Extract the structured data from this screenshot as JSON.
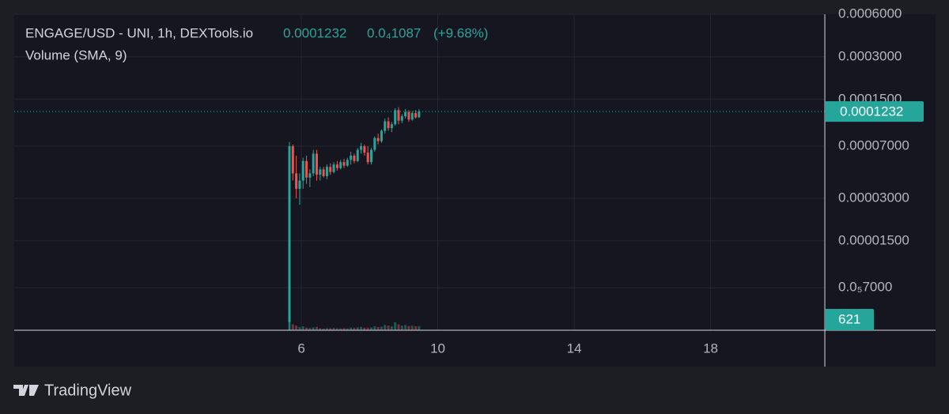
{
  "chart_data": {
    "type": "candlestick",
    "title": "ENGAGE/USD - UNI, 1h, DEXTools.io",
    "last_price": 0.0001232,
    "change": {
      "value": 1.087e-05,
      "label": "0.0₄1087"
    },
    "change_percent": {
      "value": 9.68,
      "label": "(+9.68%)"
    },
    "volume_title": "Volume (SMA, 9)",
    "brand": "TradingView",
    "log_scale": true,
    "grid": true,
    "up_color": "#26a69a",
    "down_color": "#ef5350",
    "xlim": [
      -2.42,
      21.35
    ],
    "xticks": [
      6,
      10,
      14,
      18
    ],
    "ylim": [
      3.5e-06,
      0.0006
    ],
    "yticks": [
      {
        "value": 0.0006,
        "label": "0.0006000"
      },
      {
        "value": 0.0003,
        "label": "0.0003000"
      },
      {
        "value": 0.00015,
        "label": "0.0001500"
      },
      {
        "value": 7e-05,
        "label": "0.00007000"
      },
      {
        "value": 3e-05,
        "label": "0.00003000"
      },
      {
        "value": 1.5e-05,
        "label": "0.00001500"
      },
      {
        "value": 7e-06,
        "label": "0.0₅7000"
      }
    ],
    "volume_ylim": [
      0,
      30000
    ],
    "x": [
      5.65,
      5.75,
      5.85,
      5.95,
      6.05,
      6.15,
      6.25,
      6.35,
      6.45,
      6.55,
      6.65,
      6.75,
      6.85,
      6.95,
      7.05,
      7.15,
      7.25,
      7.35,
      7.45,
      7.55,
      7.65,
      7.75,
      7.85,
      7.95,
      8.05,
      8.15,
      8.25,
      8.35,
      8.45,
      8.55,
      8.65,
      8.75,
      8.85,
      8.95,
      9.05,
      9.15,
      9.25,
      9.35,
      9.45
    ],
    "open": [
      4e-06,
      7e-05,
      4.5e-05,
      3.5e-05,
      4e-05,
      5.5e-05,
      4.2e-05,
      4.5e-05,
      6.2e-05,
      4.4e-05,
      4.8e-05,
      4.3e-05,
      5e-05,
      4.6e-05,
      5.2e-05,
      4.9e-05,
      5.4e-05,
      5.1e-05,
      5.6e-05,
      6e-05,
      5.5e-05,
      6.6e-05,
      7e-05,
      6.3e-05,
      5.4e-05,
      6.6e-05,
      8e-05,
      7.6e-05,
      9e-05,
      0.000105,
      9.4e-05,
      0.0001,
      0.000126,
      0.000106,
      0.000114,
      0.000122,
      0.000108,
      0.00012,
      0.000112
    ],
    "high": [
      7.5e-05,
      7.2e-05,
      6e-05,
      4.5e-05,
      5.8e-05,
      6e-05,
      4.8e-05,
      6.6e-05,
      6.6e-05,
      5e-05,
      5e-05,
      5.2e-05,
      5.3e-05,
      5.4e-05,
      5.5e-05,
      5.6e-05,
      5.7e-05,
      5.8e-05,
      6.4e-05,
      6.2e-05,
      6.8e-05,
      7.4e-05,
      7.2e-05,
      7e-05,
      6.8e-05,
      8.2e-05,
      8.6e-05,
      9.2e-05,
      0.00011,
      0.000112,
      0.000104,
      0.00013,
      0.000132,
      0.000118,
      0.000128,
      0.000126,
      0.000124,
      0.000126,
      0.000128
    ],
    "low": [
      3.5e-06,
      4e-05,
      3e-05,
      2.7e-05,
      3.5e-05,
      3.8e-05,
      3.6e-05,
      4.3e-05,
      4e-05,
      4e-05,
      4.2e-05,
      4.1e-05,
      4.4e-05,
      4.5e-05,
      4.7e-05,
      4.8e-05,
      4.9e-05,
      5e-05,
      5.2e-05,
      5.3e-05,
      5.4e-05,
      6.2e-05,
      6e-05,
      5.2e-05,
      5.2e-05,
      6.4e-05,
      7.2e-05,
      7.4e-05,
      8.6e-05,
      9e-05,
      8.8e-05,
      9.8e-05,
      0.0001,
      0.000102,
      0.00011,
      0.000104,
      0.000106,
      0.00011,
      0.000111
    ],
    "close": [
      7e-05,
      4.5e-05,
      3.5e-05,
      4e-05,
      5.5e-05,
      4.2e-05,
      4.5e-05,
      6.2e-05,
      4.4e-05,
      4.8e-05,
      4.3e-05,
      5e-05,
      4.6e-05,
      5.2e-05,
      4.9e-05,
      5.4e-05,
      5.1e-05,
      5.6e-05,
      6e-05,
      5.5e-05,
      6.6e-05,
      7e-05,
      6.3e-05,
      5.4e-05,
      6.6e-05,
      8e-05,
      7.6e-05,
      9e-05,
      0.000105,
      9.4e-05,
      0.0001,
      0.000126,
      0.000106,
      0.000114,
      0.000122,
      0.000108,
      0.00012,
      0.000112,
      0.0001232
    ],
    "volume": [
      3000,
      900,
      700,
      500,
      600,
      400,
      350,
      450,
      500,
      300,
      280,
      320,
      300,
      350,
      300,
      280,
      320,
      300,
      400,
      350,
      450,
      500,
      400,
      380,
      420,
      600,
      500,
      550,
      800,
      700,
      600,
      1200,
      900,
      700,
      800,
      650,
      700,
      600,
      621
    ]
  }
}
